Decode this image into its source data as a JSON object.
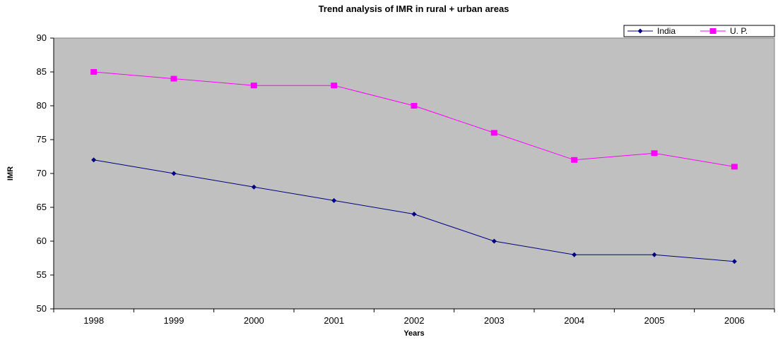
{
  "chart_data": {
    "type": "line",
    "title": "Trend analysis of IMR in rural + urban areas",
    "xlabel": "Years",
    "ylabel": "IMR",
    "categories": [
      "1998",
      "1999",
      "2000",
      "2001",
      "2002",
      "2003",
      "2004",
      "2005",
      "2006"
    ],
    "ylim": [
      50,
      90
    ],
    "yticks": [
      50,
      55,
      60,
      65,
      70,
      75,
      80,
      85,
      90
    ],
    "grid": false,
    "legend_position": "top-right",
    "plot_background": "#C0C0C0",
    "series": [
      {
        "name": "India",
        "color": "#000080",
        "marker": "diamond",
        "values": [
          72,
          70,
          68,
          66,
          64,
          60,
          58,
          58,
          57
        ]
      },
      {
        "name": "U. P.",
        "color": "#FF00FF",
        "marker": "square",
        "values": [
          85,
          84,
          83,
          83,
          80,
          76,
          72,
          73,
          71
        ]
      }
    ]
  }
}
